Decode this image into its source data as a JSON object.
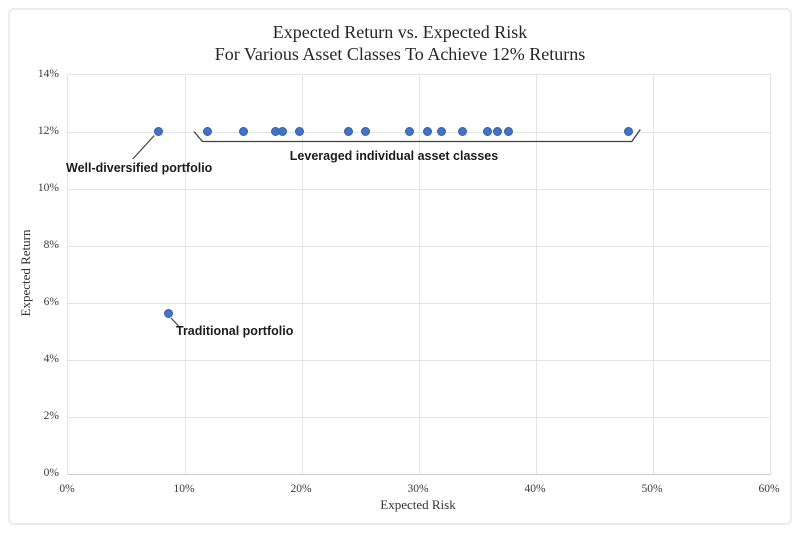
{
  "chart_data": {
    "type": "scatter",
    "title_line1": "Expected Return vs. Expected Risk",
    "title_line2": "For Various Asset Classes To Achieve 12% Returns",
    "xlabel": "Expected Risk",
    "ylabel": "Expected Return",
    "xlim": [
      0,
      60
    ],
    "ylim": [
      0,
      14
    ],
    "grid": true,
    "legend": "none",
    "x_ticks": [
      {
        "value": 0,
        "label": "0%"
      },
      {
        "value": 10,
        "label": "10%"
      },
      {
        "value": 20,
        "label": "20%"
      },
      {
        "value": 30,
        "label": "30%"
      },
      {
        "value": 40,
        "label": "40%"
      },
      {
        "value": 50,
        "label": "50%"
      },
      {
        "value": 60,
        "label": "60%"
      }
    ],
    "y_ticks": [
      {
        "value": 0,
        "label": "0%"
      },
      {
        "value": 2,
        "label": "2%"
      },
      {
        "value": 4,
        "label": "4%"
      },
      {
        "value": 6,
        "label": "6%"
      },
      {
        "value": 8,
        "label": "8%"
      },
      {
        "value": 10,
        "label": "10%"
      },
      {
        "value": 12,
        "label": "12%"
      },
      {
        "value": 14,
        "label": "14%"
      }
    ],
    "series": [
      {
        "name": "Well-diversified portfolio",
        "points": [
          {
            "x": 7.8,
            "y": 12
          }
        ]
      },
      {
        "name": "Traditional portfolio",
        "points": [
          {
            "x": 8.7,
            "y": 5.6
          }
        ]
      },
      {
        "name": "Leveraged individual asset classes",
        "points": [
          {
            "x": 12.0,
            "y": 12
          },
          {
            "x": 15.1,
            "y": 12
          },
          {
            "x": 17.8,
            "y": 12
          },
          {
            "x": 18.4,
            "y": 12
          },
          {
            "x": 19.9,
            "y": 12
          },
          {
            "x": 24.1,
            "y": 12
          },
          {
            "x": 25.5,
            "y": 12
          },
          {
            "x": 29.3,
            "y": 12
          },
          {
            "x": 30.8,
            "y": 12
          },
          {
            "x": 32.0,
            "y": 12
          },
          {
            "x": 33.8,
            "y": 12
          },
          {
            "x": 35.9,
            "y": 12
          },
          {
            "x": 36.8,
            "y": 12
          },
          {
            "x": 37.7,
            "y": 12
          },
          {
            "x": 48.0,
            "y": 12
          }
        ]
      }
    ],
    "annotations": [
      {
        "id": "well_diversified",
        "text": "Well-diversified portfolio",
        "anchor": {
          "x": 7.8,
          "y": 12
        }
      },
      {
        "id": "traditional",
        "text": "Traditional portfolio",
        "anchor": {
          "x": 8.7,
          "y": 5.6
        }
      },
      {
        "id": "leveraged",
        "text": "Leveraged individual asset classes",
        "bracket_span_x": [
          10.85,
          49.0
        ],
        "bracket_y": 12
      }
    ],
    "colors": {
      "marker_fill": "#4472c4",
      "marker_edge": "#3260ae",
      "gridline": "#e4e4e4",
      "axis_line": "#cfcfcf",
      "annotation_line": "#404040",
      "text": "#262626"
    }
  }
}
